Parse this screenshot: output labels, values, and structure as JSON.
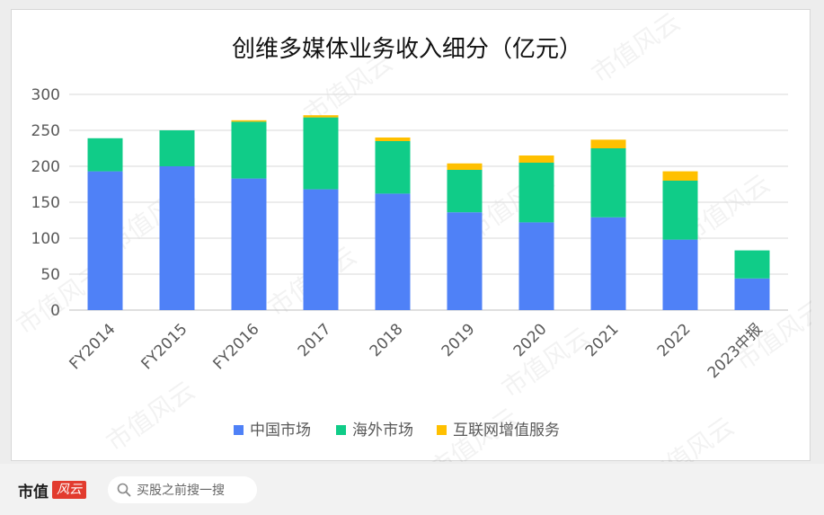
{
  "chart_data": {
    "type": "bar",
    "stacked": true,
    "title": "创维多媒体业务收入细分（亿元）",
    "categories": [
      "FY2014",
      "FY2015",
      "FY2016",
      "2017",
      "2018",
      "2019",
      "2020",
      "2021",
      "2022",
      "2023中报"
    ],
    "series": [
      {
        "name": "中国市场",
        "color": "#4f81f7",
        "values": [
          193,
          200,
          183,
          168,
          162,
          136,
          122,
          129,
          98,
          44
        ]
      },
      {
        "name": "海外市场",
        "color": "#10cc88",
        "values": [
          46,
          50,
          79,
          100,
          73,
          59,
          83,
          96,
          82,
          39
        ]
      },
      {
        "name": "互联网增值服务",
        "color": "#ffc000",
        "values": [
          0,
          0,
          2,
          3,
          5,
          9,
          10,
          12,
          13,
          0
        ]
      }
    ],
    "yticks": [
      "0",
      "50",
      "100",
      "150",
      "200",
      "250",
      "300"
    ],
    "ylim": [
      0,
      300
    ],
    "grid": true,
    "legend_position": "bottom"
  },
  "watermark": {
    "text": "市值风云"
  },
  "footer": {
    "logo_text": "市值",
    "logo_stamp": "风云",
    "search_placeholder": "买股之前搜一搜",
    "search_icon": "search-icon"
  }
}
